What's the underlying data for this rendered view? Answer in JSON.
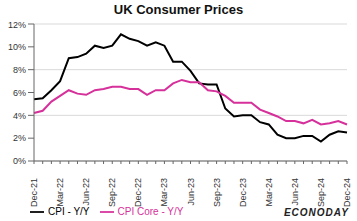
{
  "chart_data": {
    "type": "line",
    "title": "UK Consumer Prices",
    "categories": [
      "Dec-21",
      null,
      null,
      "Mar-22",
      null,
      null,
      "Jun-22",
      null,
      null,
      "Sep-22",
      null,
      null,
      "Dec-22",
      null,
      null,
      "Mar-23",
      null,
      null,
      "Jun-23",
      null,
      null,
      "Sep-23",
      null,
      null,
      "Dec-23",
      null,
      null,
      "Mar-24",
      null,
      null,
      "Jun-24",
      null,
      null,
      "Sep-24",
      null,
      null,
      "Dec-24"
    ],
    "series": [
      {
        "name": "CPI - Y/Y",
        "color": "#000000",
        "values": [
          5.4,
          5.5,
          6.2,
          7.0,
          9.0,
          9.1,
          9.4,
          10.1,
          9.9,
          10.1,
          11.1,
          10.7,
          10.5,
          10.1,
          10.4,
          10.1,
          8.7,
          8.7,
          7.9,
          6.8,
          6.7,
          6.7,
          4.6,
          3.9,
          4.0,
          4.0,
          3.4,
          3.2,
          2.3,
          2.0,
          2.0,
          2.2,
          2.2,
          1.7,
          2.3,
          2.6,
          2.5
        ]
      },
      {
        "name": "CPI Core - Y/Y",
        "color": "#d6309a",
        "values": [
          4.2,
          4.4,
          5.2,
          5.7,
          6.2,
          5.9,
          5.8,
          6.2,
          6.3,
          6.5,
          6.5,
          6.3,
          6.3,
          5.8,
          6.2,
          6.2,
          6.8,
          7.1,
          6.9,
          6.9,
          6.2,
          6.1,
          5.7,
          5.1,
          5.1,
          5.1,
          4.5,
          4.2,
          3.9,
          3.5,
          3.5,
          3.3,
          3.6,
          3.2,
          3.3,
          3.5,
          3.2
        ]
      }
    ],
    "ylim": [
      0,
      12
    ],
    "yticks": [
      {
        "value": 0,
        "label": "0%"
      },
      {
        "value": 2,
        "label": "2%"
      },
      {
        "value": 4,
        "label": "4%"
      },
      {
        "value": 6,
        "label": "6%"
      },
      {
        "value": 8,
        "label": "8%"
      },
      {
        "value": 10,
        "label": "10%"
      },
      {
        "value": 12,
        "label": "12%"
      }
    ],
    "grid": true,
    "legend": "bottom",
    "annotations": [
      "ECONODAY"
    ]
  }
}
